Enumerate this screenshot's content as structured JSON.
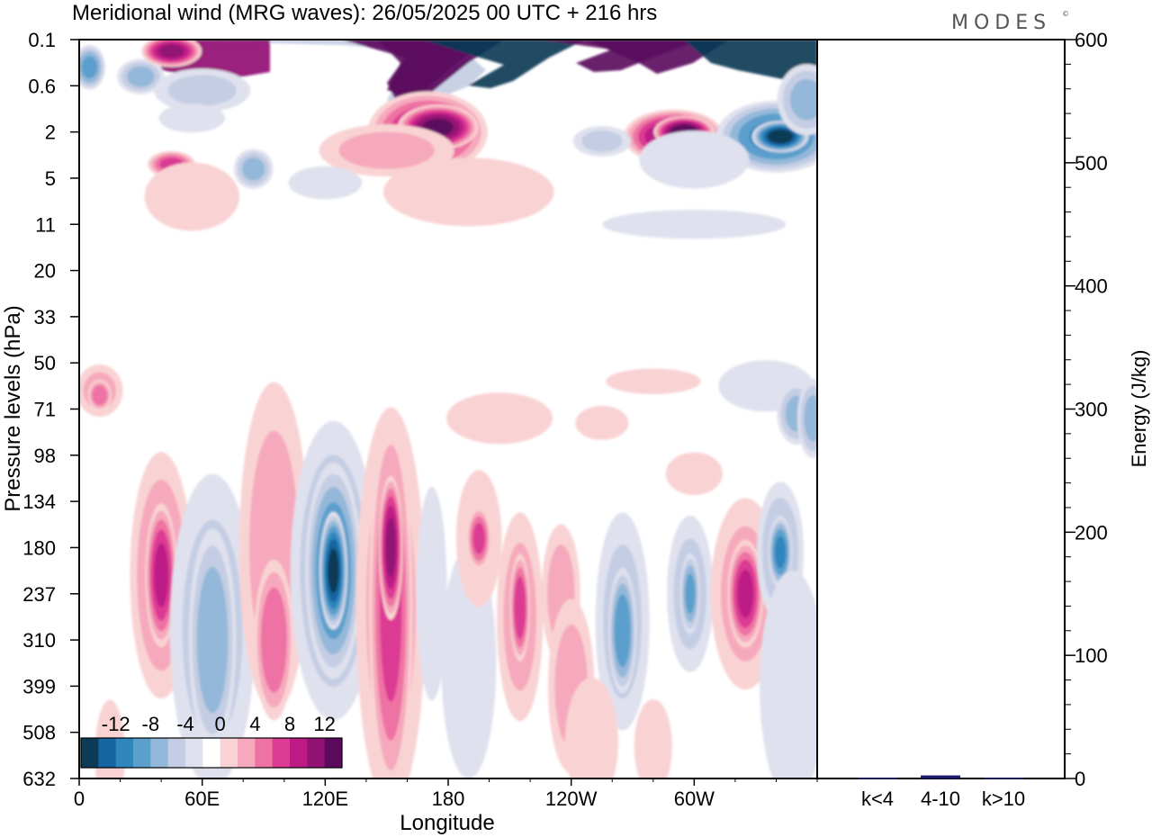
{
  "header": {
    "title": "Meridional wind (MRG waves):  26/05/2025  00 UTC  + 216 hrs",
    "brand": "MODES",
    "brand_mark": "©"
  },
  "chart_data": [
    {
      "type": "heatmap",
      "title": "Meridional wind (MRG waves):  26/05/2025  00 UTC  + 216 hrs",
      "xlabel": "Longitude",
      "ylabel": "Pressure levels (hPa)",
      "x_ticks": [
        "0",
        "60E",
        "120E",
        "180",
        "120W",
        "60W"
      ],
      "x_tick_values": [
        0,
        60,
        120,
        180,
        240,
        300
      ],
      "xlim": [
        0,
        360
      ],
      "y_ticks": [
        "0.1",
        "0.6",
        "2",
        "5",
        "11",
        "20",
        "33",
        "50",
        "71",
        "98",
        "134",
        "180",
        "237",
        "310",
        "399",
        "508",
        "632"
      ],
      "y_scale": "log-like (level index, top = 0.1 hPa)",
      "colorbar": {
        "tick_labels": [
          "-12",
          "-8",
          "-4",
          "0",
          "4",
          "8",
          "12"
        ],
        "levels": [
          -16,
          -14,
          -12,
          -10,
          -8,
          -6,
          -4,
          -2,
          2,
          4,
          6,
          8,
          10,
          12,
          14,
          16
        ],
        "colors": [
          "#0b3b56",
          "#1565a0",
          "#2f86bd",
          "#5b9fcc",
          "#94b8d9",
          "#c4cde3",
          "#dfe1ee",
          "#ffffff",
          "#f9d3d4",
          "#f6a9bc",
          "#ee72a3",
          "#dc3a93",
          "#bd1a86",
          "#911273",
          "#5b0a5e"
        ],
        "placement": "bottom-left, inside plot"
      },
      "features": [
        {
          "lon": 197,
          "level": 0.9,
          "value": -16,
          "note": "deep blue band, upper stratosphere"
        },
        {
          "lon": 170,
          "level": 0.9,
          "value": 16,
          "note": "deep purple band"
        },
        {
          "lon": 240,
          "level": 0.4,
          "value": 16
        },
        {
          "lon": 340,
          "level": 0.6,
          "value": -16
        },
        {
          "lon": 40,
          "level": 0.3,
          "value": 12
        },
        {
          "lon": 175,
          "level": 2.0,
          "value": 12
        },
        {
          "lon": 290,
          "level": 2.1,
          "value": 12
        },
        {
          "lon": 340,
          "level": 2.1,
          "value": -12
        },
        {
          "lon": 125,
          "level": 11.5,
          "value": -14
        },
        {
          "lon": 152,
          "level": 11.5,
          "value": 12
        },
        {
          "lon": 40,
          "level": 12,
          "value": 8
        },
        {
          "lon": 325,
          "level": 12,
          "value": 10
        },
        {
          "lon": 342,
          "level": 11,
          "value": -10
        },
        {
          "lon": 265,
          "level": 12.5,
          "value": -8
        },
        {
          "lon": 298,
          "level": 12,
          "value": -6
        }
      ]
    },
    {
      "type": "bar",
      "categories": [
        "k<4",
        "4-10",
        "k>10"
      ],
      "values": [
        0.5,
        2.5,
        0.5
      ],
      "ylabel": "Energy (J/kg)",
      "ylim": [
        0,
        600
      ],
      "y_ticks": [
        0,
        100,
        200,
        300,
        400,
        500,
        600
      ],
      "bar_color": "#1a1a6e"
    }
  ]
}
